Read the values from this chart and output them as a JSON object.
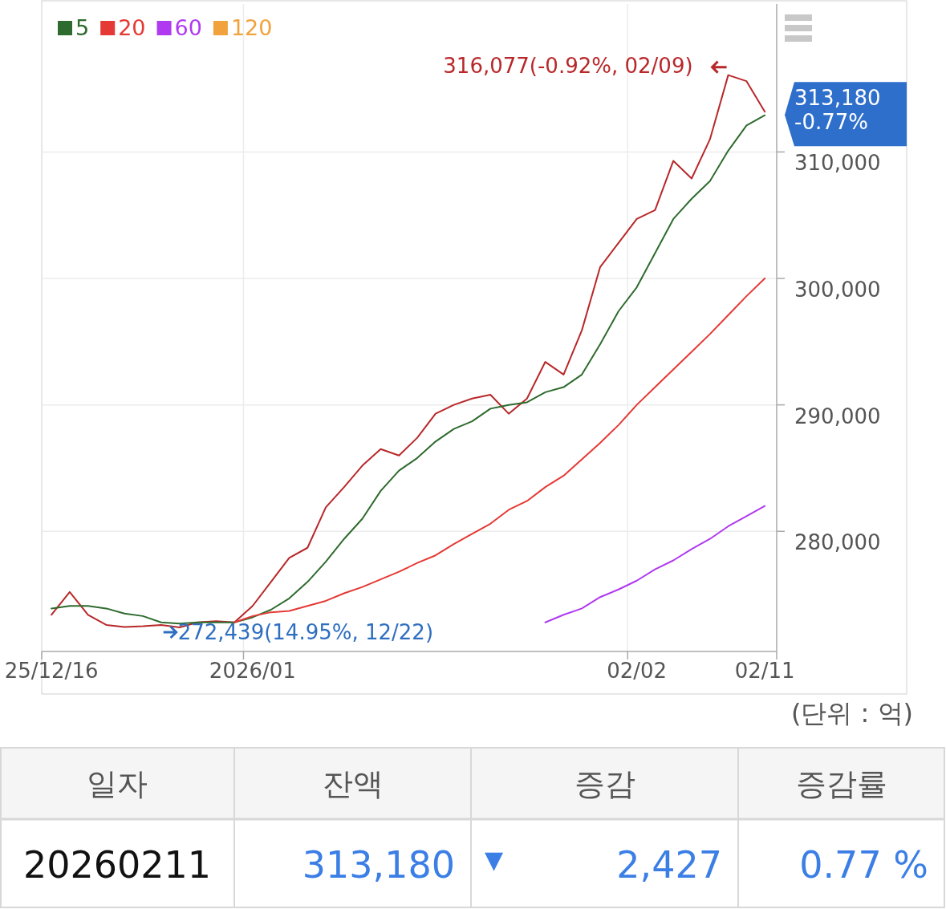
{
  "chart_data": [
    {
      "type": "line",
      "categories": [
        "25/12/16",
        null,
        null,
        null,
        null,
        null,
        null,
        null,
        null,
        null,
        null,
        "2026/01",
        null,
        null,
        null,
        null,
        null,
        null,
        null,
        null,
        null,
        null,
        null,
        null,
        null,
        null,
        null,
        null,
        null,
        null,
        null,
        null,
        "02/02",
        null,
        null,
        null,
        null,
        null,
        null,
        "02/11"
      ],
      "series": [
        {
          "color": "#b8282a",
          "values": [
            273400,
            275200,
            273400,
            272600,
            272439,
            272500,
            272600,
            272400,
            272800,
            272900,
            272800,
            274100,
            276000,
            277900,
            278700,
            281900,
            283500,
            285200,
            286500,
            286000,
            287400,
            289300,
            290000,
            290500,
            290800,
            289300,
            290500,
            293400,
            292400,
            295900,
            300900,
            302800,
            304700,
            305400,
            309300,
            307900,
            311000,
            316077,
            315600,
            313180
          ]
        },
        {
          "name": "5",
          "color": "#2e6b2e",
          "values": [
            273900,
            274100,
            274100,
            273900,
            273500,
            273300,
            272800,
            272700,
            272800,
            272800,
            272800,
            273200,
            273800,
            274700,
            276000,
            277600,
            279400,
            281000,
            283200,
            284800,
            285800,
            287100,
            288100,
            288700,
            289700,
            290000,
            290200,
            291000,
            291400,
            292400,
            294800,
            297400,
            299300,
            302000,
            304700,
            306300,
            307700,
            310100,
            312100,
            312900
          ]
        },
        {
          "name": "20",
          "color": "#e53935",
          "values": [
            null,
            null,
            null,
            null,
            null,
            null,
            null,
            null,
            null,
            null,
            272800,
            273300,
            273600,
            273700,
            274100,
            274500,
            275100,
            275600,
            276200,
            276800,
            277500,
            278100,
            279000,
            279800,
            280600,
            281700,
            282400,
            283500,
            284400,
            285700,
            287000,
            288400,
            290000,
            291400,
            292800,
            294200,
            295600,
            297100,
            298600,
            300000
          ]
        },
        {
          "name": "60",
          "color": "#b03af0",
          "values": [
            null,
            null,
            null,
            null,
            null,
            null,
            null,
            null,
            null,
            null,
            null,
            null,
            null,
            null,
            null,
            null,
            null,
            null,
            null,
            null,
            null,
            null,
            null,
            null,
            null,
            null,
            null,
            272800,
            273400,
            273900,
            274800,
            275400,
            276100,
            277000,
            277700,
            278600,
            279400,
            280400,
            281200,
            282000
          ]
        },
        {
          "name": "120",
          "color": "#f2a23c",
          "values": [
            null,
            null,
            null,
            null,
            null,
            null,
            null,
            null,
            null,
            null,
            null,
            null,
            null,
            null,
            null,
            null,
            null,
            null,
            null,
            null,
            null,
            null,
            null,
            null,
            null,
            null,
            null,
            null,
            null,
            null,
            null,
            null,
            null,
            null,
            null,
            null,
            null,
            null,
            null,
            null
          ]
        }
      ],
      "ylim": [
        270500,
        321700
      ],
      "yticks": [
        {
          "value": 280000,
          "label": "280,000"
        },
        {
          "value": 290000,
          "label": "290,000"
        },
        {
          "value": 300000,
          "label": "300,000"
        },
        {
          "value": 310000,
          "label": "310,000"
        }
      ],
      "grid": true,
      "legend": "top left",
      "annotations": [
        "316,077(-0.92%, 02/09)",
        "272,439(14.95%, 12/22)",
        "313,180\n-0.77%",
        "(단위 : 억)"
      ]
    },
    {
      "type": "other",
      "categories": [
        "일자",
        "잔액",
        "증감",
        "증감률"
      ],
      "annotations": [
        "20260211",
        "313,180",
        "▼",
        "2,427",
        "0.77 %"
      ]
    }
  ]
}
